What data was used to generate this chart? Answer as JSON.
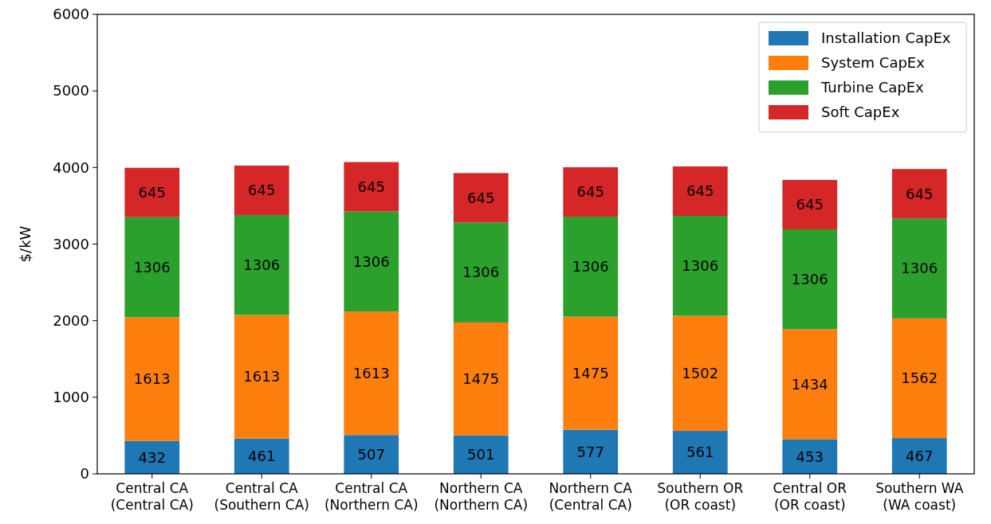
{
  "chart_data": {
    "type": "bar",
    "stacked": true,
    "ylabel": "$/kW",
    "categories": [
      "Central CA\n(Central CA)",
      "Central CA\n(Southern CA)",
      "Central CA\n(Northern CA)",
      "Northern CA\n(Northern CA)",
      "Northern CA\n(Central CA)",
      "Southern OR\n(OR coast)",
      "Central OR\n(OR coast)",
      "Southern WA\n(WA coast)"
    ],
    "series": [
      {
        "name": "Installation CapEx",
        "color": "#1f77b4",
        "values": [
          432,
          461,
          507,
          501,
          577,
          561,
          453,
          467
        ]
      },
      {
        "name": "System CapEx",
        "color": "#ff7f0e",
        "values": [
          1613,
          1613,
          1613,
          1475,
          1475,
          1502,
          1434,
          1562
        ]
      },
      {
        "name": "Turbine CapEx",
        "color": "#2ca02c",
        "values": [
          1306,
          1306,
          1306,
          1306,
          1306,
          1306,
          1306,
          1306
        ]
      },
      {
        "name": "Soft CapEx",
        "color": "#d62728",
        "values": [
          645,
          645,
          645,
          645,
          645,
          645,
          645,
          645
        ]
      }
    ],
    "ylim": [
      0,
      6000
    ],
    "yticks": [
      0,
      1000,
      2000,
      3000,
      4000,
      5000,
      6000
    ],
    "data_labels": true,
    "legend": "top right",
    "grid": false
  }
}
